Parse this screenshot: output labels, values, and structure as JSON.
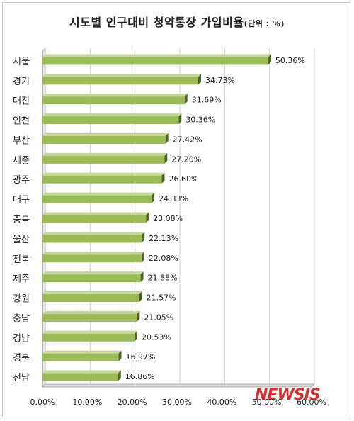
{
  "chart_data": {
    "type": "bar",
    "orientation": "horizontal",
    "title": "시도별 인구대비 청약통장 가입비율",
    "title_unit": "(단위 : %)",
    "categories": [
      "서울",
      "경기",
      "대전",
      "인천",
      "부산",
      "세종",
      "광주",
      "대구",
      "충북",
      "울산",
      "전북",
      "제주",
      "강원",
      "충남",
      "경남",
      "경북",
      "전남"
    ],
    "values": [
      50.36,
      34.73,
      31.69,
      30.36,
      27.42,
      27.2,
      26.6,
      24.33,
      23.08,
      22.13,
      22.08,
      21.88,
      21.57,
      21.05,
      20.53,
      16.97,
      16.86
    ],
    "value_labels": [
      "50.36%",
      "34.73%",
      "31.69%",
      "30.36%",
      "27.42%",
      "27.20%",
      "26.60%",
      "24.33%",
      "23.08%",
      "22.13%",
      "22.08%",
      "21.88%",
      "21.57%",
      "21.05%",
      "20.53%",
      "16.97%",
      "16.86%"
    ],
    "x_ticks": [
      "0.00%",
      "10.00%",
      "20.00%",
      "30.00%",
      "40.00%",
      "50.00%",
      "60.00%"
    ],
    "xlim": [
      0,
      60
    ],
    "grid": true,
    "legend": "none",
    "bar_color": "#9bbb59"
  },
  "watermark": "NEWSIS"
}
